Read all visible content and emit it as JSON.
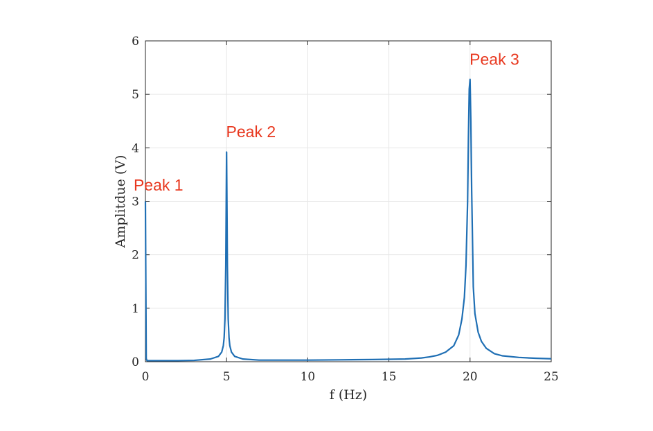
{
  "chart_data": {
    "type": "line",
    "xlabel": "f (Hz)",
    "ylabel": "Amplitdue (V)",
    "xlim": [
      0,
      25
    ],
    "ylim": [
      0,
      6
    ],
    "xticks": [
      "0",
      "5",
      "10",
      "15",
      "20",
      "25"
    ],
    "yticks": [
      "0",
      "1",
      "2",
      "3",
      "4",
      "5",
      "6"
    ],
    "grid": true,
    "line_color": "#1f6fb4",
    "annotation_color": "#e8381f",
    "series": [
      {
        "x": [
          0,
          0.05,
          0.1,
          0.2,
          0.5,
          1,
          2,
          3,
          4,
          4.5,
          4.7,
          4.8,
          4.85,
          4.9,
          4.95,
          5.0,
          5.05,
          5.1,
          5.15,
          5.2,
          5.3,
          5.5,
          6,
          7,
          8,
          10,
          12,
          14,
          15,
          16,
          17,
          17.5,
          18,
          18.5,
          19,
          19.3,
          19.5,
          19.65,
          19.75,
          19.85,
          19.9,
          19.95,
          20.0,
          20.05,
          20.1,
          20.2,
          20.3,
          20.5,
          20.7,
          21,
          21.5,
          22,
          23,
          24,
          25
        ],
        "y": [
          3.0,
          0.06,
          0.02,
          0.02,
          0.02,
          0.02,
          0.02,
          0.025,
          0.05,
          0.1,
          0.18,
          0.3,
          0.45,
          0.8,
          1.8,
          3.92,
          1.8,
          0.8,
          0.45,
          0.3,
          0.18,
          0.1,
          0.05,
          0.03,
          0.03,
          0.03,
          0.035,
          0.04,
          0.045,
          0.05,
          0.07,
          0.09,
          0.12,
          0.18,
          0.3,
          0.5,
          0.8,
          1.2,
          1.8,
          3.0,
          4.2,
          5.1,
          5.28,
          4.5,
          3.2,
          1.4,
          0.9,
          0.55,
          0.38,
          0.25,
          0.15,
          0.11,
          0.08,
          0.065,
          0.055
        ]
      }
    ],
    "annotations": [
      {
        "text": "Peak 1",
        "x": 0.8,
        "y": 3.2
      },
      {
        "text": "Peak 2",
        "x": 6.5,
        "y": 4.2
      },
      {
        "text": "Peak 3",
        "x": 21.5,
        "y": 5.55
      }
    ]
  }
}
